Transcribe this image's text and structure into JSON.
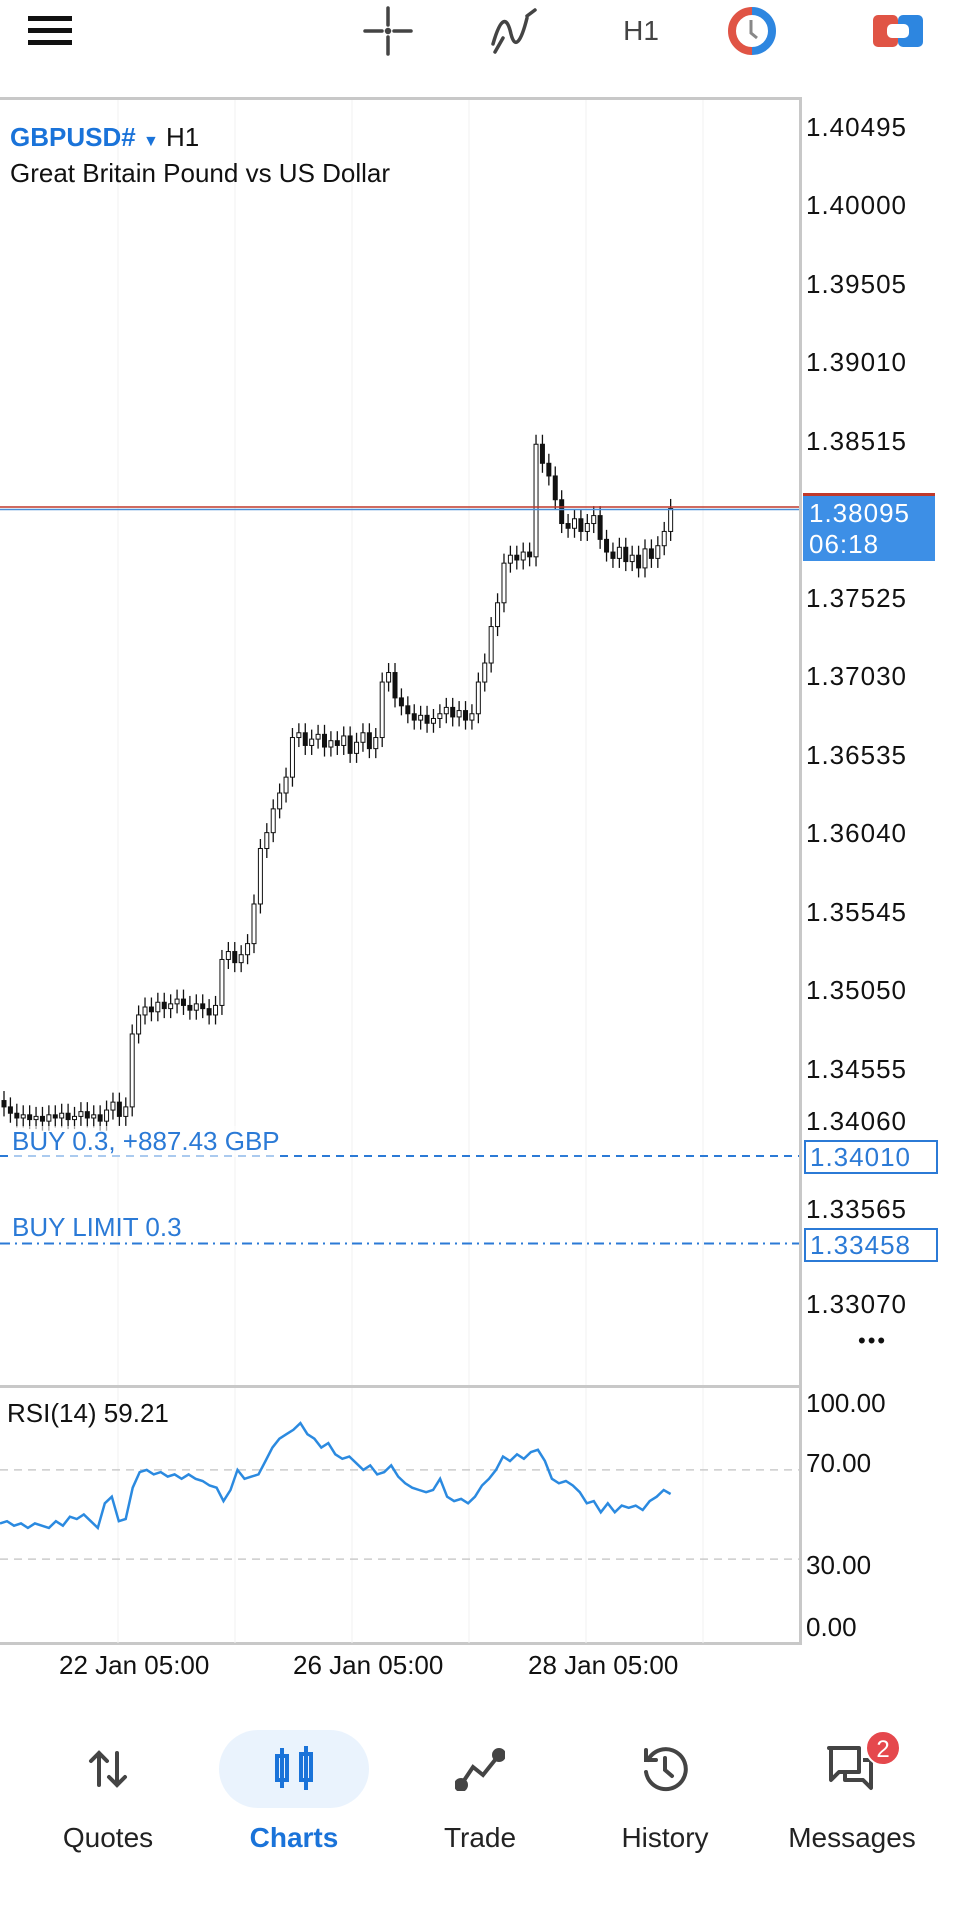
{
  "toolbar": {
    "icons": [
      "menu-icon",
      "crosshair-icon",
      "indicators-icon",
      "timeframe",
      "one-click-trading-icon",
      "objects-icon"
    ],
    "timeframe": "H1"
  },
  "chart": {
    "symbol": "GBPUSD#",
    "timeframe": "H1",
    "description": "Great Britain Pound vs US Dollar",
    "price_ticks": [
      "1.40495",
      "1.40000",
      "1.39505",
      "1.39010",
      "1.38515",
      "1.38095",
      "1.37525",
      "1.37030",
      "1.36535",
      "1.36040",
      "1.35545",
      "1.35050",
      "1.34555",
      "1.34060",
      "1.33565",
      "1.33070"
    ],
    "current_price": "1.38095",
    "countdown": "06:18",
    "orders": [
      {
        "label": "BUY 0.3,  +887.43 GBP",
        "price": "1.34010",
        "style": "dashed"
      },
      {
        "label": "BUY LIMIT 0.3",
        "price": "1.33458",
        "style": "dashdot"
      }
    ],
    "more": "•••",
    "colors": {
      "accent": "#1a73d9",
      "bid_line": "#c0392b",
      "candle": "#111111"
    }
  },
  "chart_data": {
    "type": "candlestick",
    "ylim": [
      1.327,
      1.4075
    ],
    "closes": [
      1.3432,
      1.3428,
      1.3425,
      1.3427,
      1.3424,
      1.3426,
      1.3423,
      1.3427,
      1.3425,
      1.3428,
      1.3424,
      1.3426,
      1.3429,
      1.3425,
      1.3427,
      1.3423,
      1.343,
      1.3435,
      1.3426,
      1.3432,
      1.3478,
      1.349,
      1.3495,
      1.3492,
      1.3498,
      1.3494,
      1.3497,
      1.35,
      1.3496,
      1.3493,
      1.3497,
      1.3494,
      1.349,
      1.3496,
      1.3525,
      1.353,
      1.3523,
      1.3528,
      1.3535,
      1.356,
      1.3595,
      1.3605,
      1.362,
      1.363,
      1.364,
      1.3665,
      1.3668,
      1.366,
      1.3664,
      1.3667,
      1.3659,
      1.3663,
      1.366,
      1.3666,
      1.3655,
      1.3662,
      1.3668,
      1.3658,
      1.3665,
      1.37,
      1.3706,
      1.369,
      1.3685,
      1.368,
      1.3676,
      1.3679,
      1.3674,
      1.3677,
      1.368,
      1.3684,
      1.3678,
      1.3682,
      1.3676,
      1.368,
      1.37,
      1.3712,
      1.3735,
      1.375,
      1.3775,
      1.378,
      1.3777,
      1.3782,
      1.3779,
      1.385,
      1.3838,
      1.383,
      1.3815,
      1.38,
      1.3797,
      1.3803,
      1.3795,
      1.38,
      1.3805,
      1.379,
      1.3782,
      1.3778,
      1.3785,
      1.3776,
      1.378,
      1.3772,
      1.3784,
      1.3778,
      1.3786,
      1.3795,
      1.38095
    ],
    "x_ticks": [
      "22 Jan 05:00",
      "26 Jan 05:00",
      "28 Jan 05:00"
    ],
    "rsi": {
      "label": "RSI(14) 59.21",
      "period": 14,
      "value": 59.21,
      "levels": [
        70,
        30
      ],
      "ticks": [
        "100.00",
        "70.00",
        "30.00",
        "0.00"
      ],
      "ylim": [
        0,
        100
      ],
      "values": [
        46,
        47,
        45,
        46,
        44,
        46,
        45,
        44,
        47,
        45,
        49,
        48,
        50,
        47,
        44,
        55,
        58,
        47,
        48,
        62,
        69,
        70,
        68,
        69,
        67,
        68,
        66,
        68,
        66,
        65,
        63,
        62,
        56,
        61,
        70,
        66,
        67,
        68,
        74,
        80,
        84,
        86,
        88,
        91,
        86,
        84,
        80,
        82,
        77,
        75,
        76,
        73,
        70,
        72,
        68,
        69,
        72,
        67,
        64,
        62,
        61,
        60,
        61,
        66,
        58,
        56,
        57,
        55,
        58,
        63,
        66,
        70,
        76,
        74,
        77,
        75,
        78,
        79,
        74,
        66,
        64,
        65,
        63,
        60,
        55,
        56,
        51,
        55,
        51,
        54,
        53,
        54,
        52,
        56,
        58,
        61,
        59.21
      ],
      "color": "#2b8ae0"
    }
  },
  "nav": {
    "items": [
      {
        "label": "Quotes",
        "icon": "quotes-icon"
      },
      {
        "label": "Charts",
        "icon": "charts-icon",
        "active": true
      },
      {
        "label": "Trade",
        "icon": "trade-icon"
      },
      {
        "label": "History",
        "icon": "history-icon"
      },
      {
        "label": "Messages",
        "icon": "messages-icon",
        "badge": "2"
      }
    ]
  }
}
